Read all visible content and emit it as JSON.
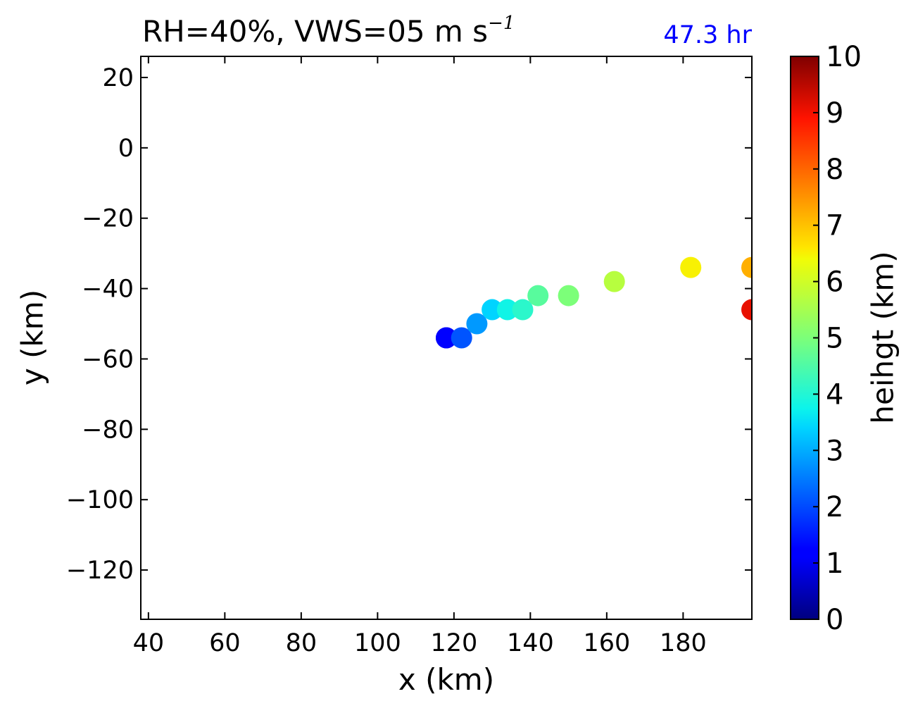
{
  "chart_data": {
    "type": "scatter",
    "title": "RH=40%, VWS=05 m s",
    "title_superscript": "−1",
    "title_right": "47.3 hr",
    "title_right_color": "#0000ff",
    "xlabel": "x (km)",
    "ylabel": "y (km)",
    "xlim": [
      38,
      198
    ],
    "ylim": [
      -134,
      26
    ],
    "xticks": [
      40,
      60,
      80,
      100,
      120,
      140,
      160,
      180
    ],
    "xtick_labels": [
      "40",
      "60",
      "80",
      "100",
      "120",
      "140",
      "160",
      "180"
    ],
    "yticks": [
      20,
      0,
      -20,
      -40,
      -60,
      -80,
      -100,
      -120
    ],
    "ytick_labels": [
      "20",
      "0",
      "−20",
      "−40",
      "−60",
      "−80",
      "−100",
      "−120"
    ],
    "grid": false,
    "colormap": "jet",
    "colorbar": {
      "label": "heihgt (km)",
      "range": [
        0,
        10
      ],
      "ticks": [
        0,
        1,
        2,
        3,
        4,
        5,
        6,
        7,
        8,
        9,
        10
      ],
      "tick_labels": [
        "0",
        "1",
        "2",
        "3",
        "4",
        "5",
        "6",
        "7",
        "8",
        "9",
        "10"
      ]
    },
    "points": [
      {
        "x": 118,
        "y": -54,
        "height": 0.9
      },
      {
        "x": 118,
        "y": -54,
        "height": 1.1
      },
      {
        "x": 122,
        "y": -54,
        "height": 2.1
      },
      {
        "x": 126,
        "y": -50,
        "height": 2.8
      },
      {
        "x": 130,
        "y": -46,
        "height": 3.4
      },
      {
        "x": 134,
        "y": -46,
        "height": 3.8
      },
      {
        "x": 138,
        "y": -46,
        "height": 4.1
      },
      {
        "x": 142,
        "y": -42,
        "height": 4.6
      },
      {
        "x": 150,
        "y": -42,
        "height": 5.0
      },
      {
        "x": 162,
        "y": -38,
        "height": 5.7
      },
      {
        "x": 182,
        "y": -34,
        "height": 6.5
      },
      {
        "x": 198,
        "y": -34,
        "height": 7.2
      },
      {
        "x": 198,
        "y": -46,
        "height": 9.1
      }
    ]
  }
}
